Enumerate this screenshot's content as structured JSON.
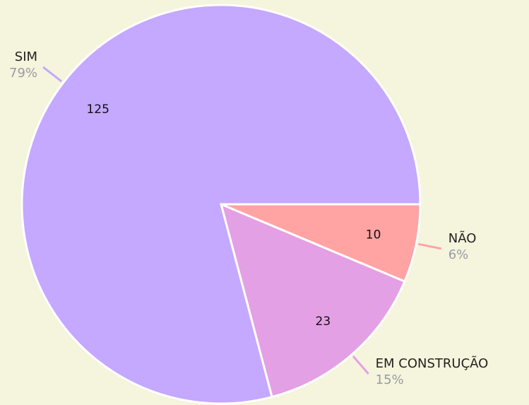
{
  "chart_data": {
    "type": "pie",
    "categories": [
      "SIM",
      "NÃO",
      "EM CONSTRUÇÃO"
    ],
    "values": [
      125,
      10,
      23
    ],
    "percent_labels": [
      "79%",
      "6%",
      "15%"
    ],
    "colors": [
      "#c5a8ff",
      "#ffa3a3",
      "#e4a0e4"
    ]
  }
}
